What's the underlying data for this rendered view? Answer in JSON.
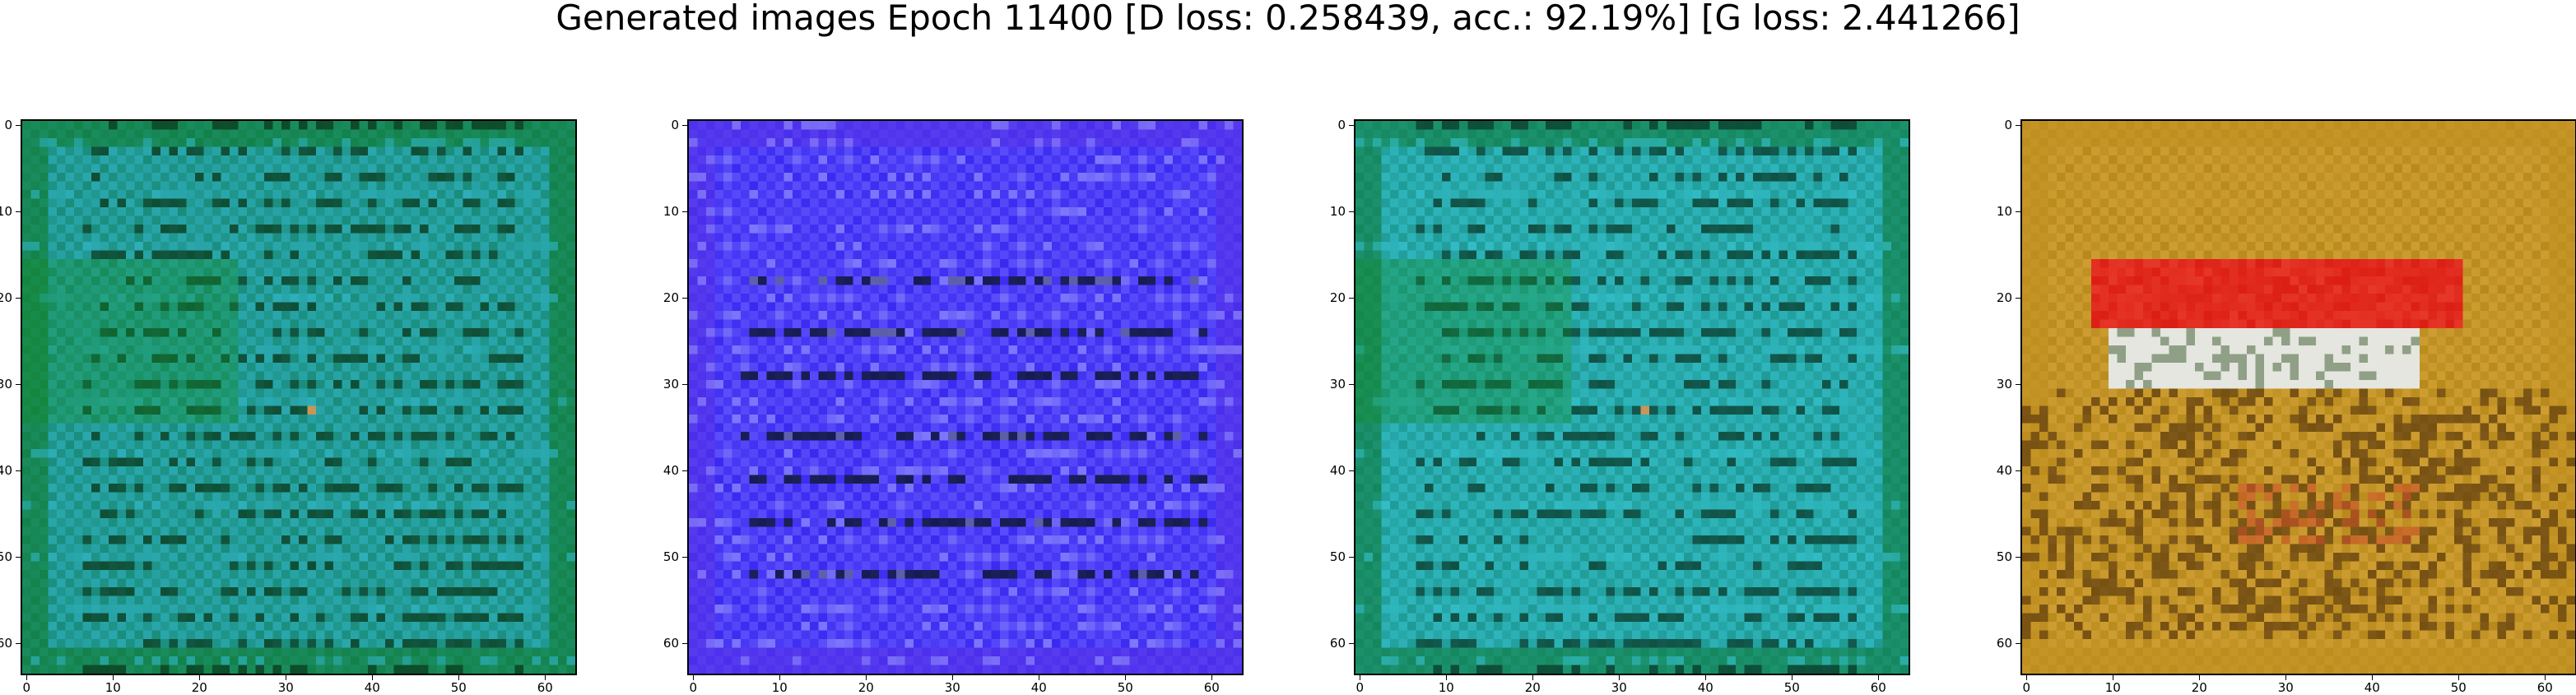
{
  "figure": {
    "title": "Generated images Epoch 11400 [D loss: 0.258439, acc.: 92.19%] [G loss: 2.441266]"
  },
  "axes": {
    "x_ticks": [
      "0",
      "10",
      "20",
      "30",
      "40",
      "50",
      "60"
    ],
    "y_ticks": [
      "0",
      "10",
      "20",
      "30",
      "40",
      "50",
      "60"
    ],
    "x_tick_values": [
      0,
      10,
      20,
      30,
      40,
      50,
      60
    ],
    "y_tick_values": [
      0,
      10,
      20,
      30,
      40,
      50,
      60
    ],
    "image_size": 64
  },
  "panels": [
    {
      "name": "generated-image-1",
      "palette": {
        "base": "#1a8c7a",
        "alt": "#2fb3c2",
        "dark": "#0a3a1c",
        "edge": "#0f7a2a"
      },
      "pattern": "green-grid"
    },
    {
      "name": "generated-image-2",
      "palette": {
        "base": "#3a2af0",
        "alt": "#6a5cff",
        "dark": "#10183a",
        "edge": "#5530e8"
      },
      "pattern": "blue-stripes"
    },
    {
      "name": "generated-image-3",
      "palette": {
        "base": "#1f9a95",
        "alt": "#34c0cc",
        "dark": "#0a3a2a",
        "edge": "#0f7a3a"
      },
      "pattern": "green-grid"
    },
    {
      "name": "generated-image-4",
      "palette": {
        "base": "#b88a1c",
        "alt": "#d6a53a",
        "dark": "#4a2a08",
        "edge": "#c09020"
      },
      "pattern": "warm-house"
    }
  ]
}
